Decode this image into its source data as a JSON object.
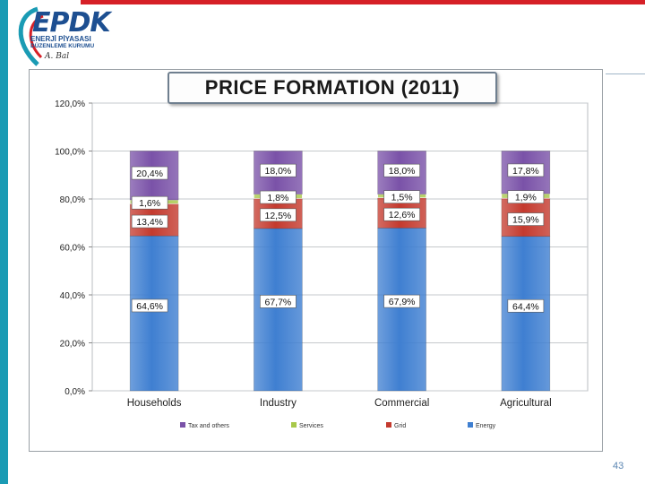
{
  "header": {
    "logo_word": "EPDK",
    "logo_line1": "ENERJİ PİYASASI",
    "logo_line2": "DÜZENLEME KURUMU",
    "logo_signature": "A. Bal"
  },
  "page_number": "43",
  "colors": {
    "energy": "#3f7fd1",
    "grid": "#c43a2e",
    "services": "#a8c84a",
    "tax": "#7a52a8",
    "label_bg": "#ffffff",
    "accent_red": "#d62027",
    "accent_teal": "#1a9bb4"
  },
  "chart_data": {
    "type": "bar",
    "stacked": true,
    "title": "PRICE FORMATION (2011)",
    "categories": [
      "Households",
      "Industry",
      "Commercial",
      "Agricultural"
    ],
    "series": [
      {
        "name": "Energy",
        "values": [
          64.6,
          67.7,
          67.9,
          64.4
        ],
        "labels": [
          "64,6%",
          "67,7%",
          "67,9%",
          "64,4%"
        ]
      },
      {
        "name": "Grid",
        "values": [
          13.4,
          12.5,
          12.6,
          15.9
        ],
        "labels": [
          "13,4%",
          "12,5%",
          "12,6%",
          "15,9%"
        ]
      },
      {
        "name": "Services",
        "values": [
          1.6,
          1.8,
          1.5,
          1.9
        ],
        "labels": [
          "1,6%",
          "1,8%",
          "1,5%",
          "1,9%"
        ]
      },
      {
        "name": "Tax and others",
        "values": [
          20.4,
          18.0,
          18.0,
          17.8
        ],
        "labels": [
          "20,4%",
          "18,0%",
          "18,0%",
          "17,8%"
        ]
      }
    ],
    "legend": [
      "Tax and others",
      "Services",
      "Grid",
      "Energy"
    ],
    "yticks": [
      "0,0%",
      "20,0%",
      "40,0%",
      "60,0%",
      "80,0%",
      "100,0%",
      "120,0%"
    ],
    "ylim": [
      0,
      120
    ],
    "ystep": 20,
    "legend_position": "bottom"
  }
}
